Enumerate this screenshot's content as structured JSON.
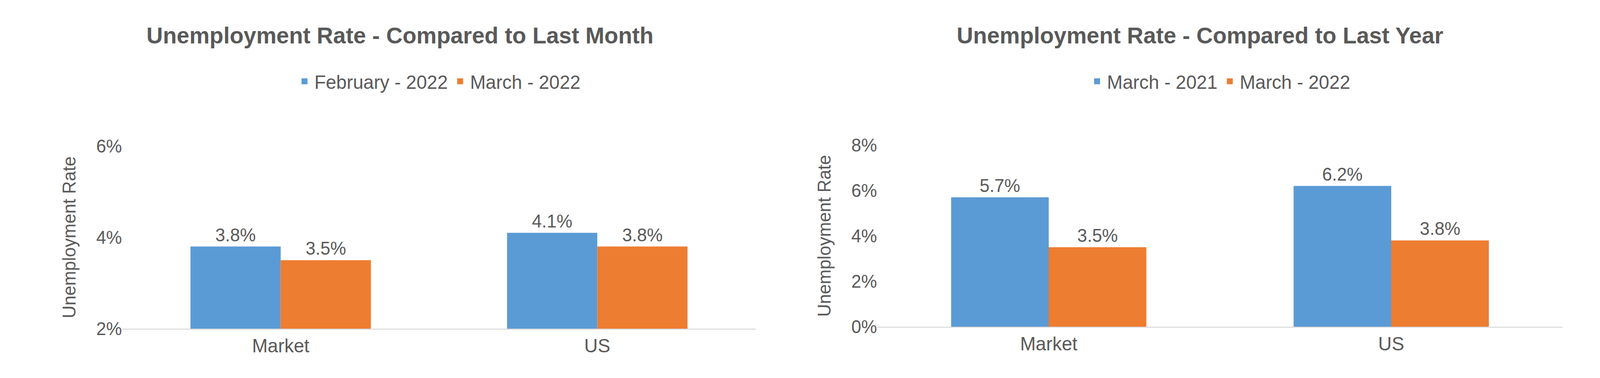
{
  "chart_data": [
    {
      "type": "bar",
      "title": "Unemployment Rate - Compared to Last Month",
      "y_label": "Unemployment Rate",
      "categories": [
        "Market",
        "US"
      ],
      "series": [
        {
          "name": "February - 2022",
          "color": "#5b9bd5",
          "values": [
            3.8,
            4.1
          ],
          "value_labels": [
            "3.8%",
            "4.1%"
          ]
        },
        {
          "name": "March - 2022",
          "color": "#ed7d31",
          "values": [
            3.5,
            3.8
          ],
          "value_labels": [
            "3.5%",
            "3.8%"
          ]
        }
      ],
      "ylim": [
        2,
        6
      ],
      "yticks": [
        {
          "value": 2,
          "label": "2%"
        },
        {
          "value": 4,
          "label": "4%"
        },
        {
          "value": 6,
          "label": "6%"
        }
      ],
      "grid": false,
      "legend": "top",
      "data_labels": true
    },
    {
      "type": "bar",
      "title": "Unemployment Rate - Compared to Last Year",
      "y_label": "Unemployment Rate",
      "categories": [
        "Market",
        "US"
      ],
      "series": [
        {
          "name": "March - 2021",
          "color": "#5b9bd5",
          "values": [
            5.7,
            6.2
          ],
          "value_labels": [
            "5.7%",
            "6.2%"
          ]
        },
        {
          "name": "March - 2022",
          "color": "#ed7d31",
          "values": [
            3.5,
            3.8
          ],
          "value_labels": [
            "3.5%",
            "3.8%"
          ]
        }
      ],
      "ylim": [
        0,
        8
      ],
      "yticks": [
        {
          "value": 0,
          "label": "0%"
        },
        {
          "value": 2,
          "label": "2%"
        },
        {
          "value": 4,
          "label": "4%"
        },
        {
          "value": 6,
          "label": "6%"
        },
        {
          "value": 8,
          "label": "8%"
        }
      ],
      "grid": false,
      "legend": "top",
      "data_labels": true
    }
  ]
}
